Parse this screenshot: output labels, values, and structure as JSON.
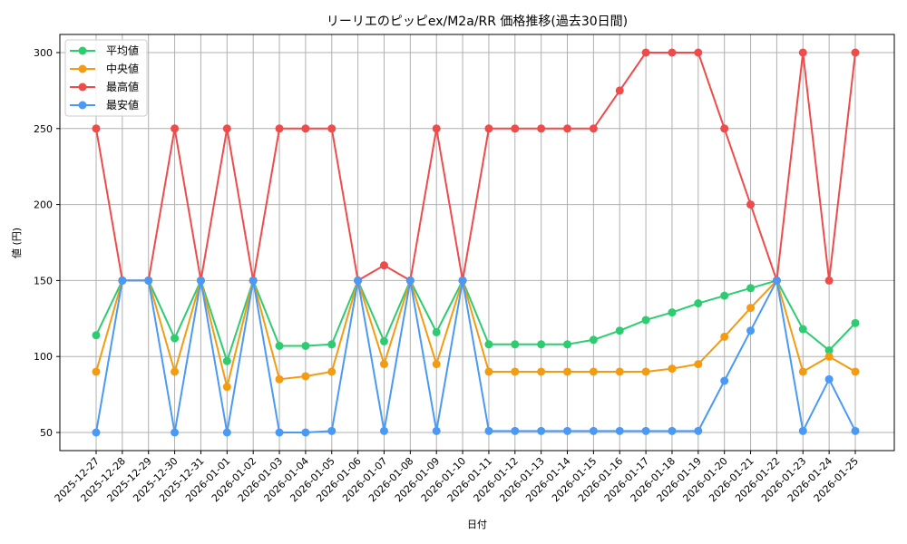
{
  "chart_data": {
    "type": "line",
    "title": "リーリエのピッピex/M2a/RR 価格推移(過去30日間)",
    "xlabel": "日付",
    "ylabel": "値 (円)",
    "ylim": [
      37,
      312
    ],
    "yticks": [
      50,
      100,
      150,
      200,
      250,
      300
    ],
    "grid": true,
    "legend_position": "upper left",
    "x": [
      "2025-12-27",
      "2025-12-28",
      "2025-12-29",
      "2025-12-30",
      "2025-12-31",
      "2026-01-01",
      "2026-01-02",
      "2026-01-03",
      "2026-01-04",
      "2026-01-05",
      "2026-01-06",
      "2026-01-07",
      "2026-01-08",
      "2026-01-09",
      "2026-01-10",
      "2026-01-11",
      "2026-01-12",
      "2026-01-13",
      "2026-01-14",
      "2026-01-15",
      "2026-01-16",
      "2026-01-17",
      "2026-01-18",
      "2026-01-19",
      "2026-01-20",
      "2026-01-21",
      "2026-01-22",
      "2026-01-23",
      "2026-01-24",
      "2026-01-25"
    ],
    "series": [
      {
        "name": "平均値",
        "color": "#2ecc71",
        "values": [
          114,
          150,
          150,
          112,
          150,
          97,
          150,
          107,
          107,
          108,
          150,
          110,
          150,
          116,
          150,
          108,
          108,
          108,
          108,
          111,
          117,
          124,
          129,
          135,
          140,
          145,
          150,
          118,
          104,
          122
        ]
      },
      {
        "name": "中央値",
        "color": "#f39c12",
        "values": [
          90,
          150,
          150,
          90,
          150,
          80,
          150,
          85,
          87,
          90,
          150,
          95,
          150,
          95,
          150,
          90,
          90,
          90,
          90,
          90,
          90,
          90,
          92,
          95,
          113,
          132,
          150,
          90,
          100,
          90
        ]
      },
      {
        "name": "最高値",
        "color": "#ef4b4b",
        "values": [
          250,
          150,
          150,
          250,
          150,
          250,
          150,
          250,
          250,
          250,
          150,
          160,
          150,
          250,
          150,
          250,
          250,
          250,
          250,
          250,
          275,
          300,
          300,
          300,
          250,
          200,
          150,
          300,
          150,
          300
        ]
      },
      {
        "name": "最安値",
        "color": "#4a9af5",
        "values": [
          50,
          150,
          150,
          50,
          150,
          50,
          150,
          50,
          50,
          51,
          150,
          51,
          150,
          51,
          150,
          51,
          51,
          51,
          51,
          51,
          51,
          51,
          51,
          51,
          84,
          117,
          150,
          51,
          85,
          51
        ]
      }
    ]
  }
}
